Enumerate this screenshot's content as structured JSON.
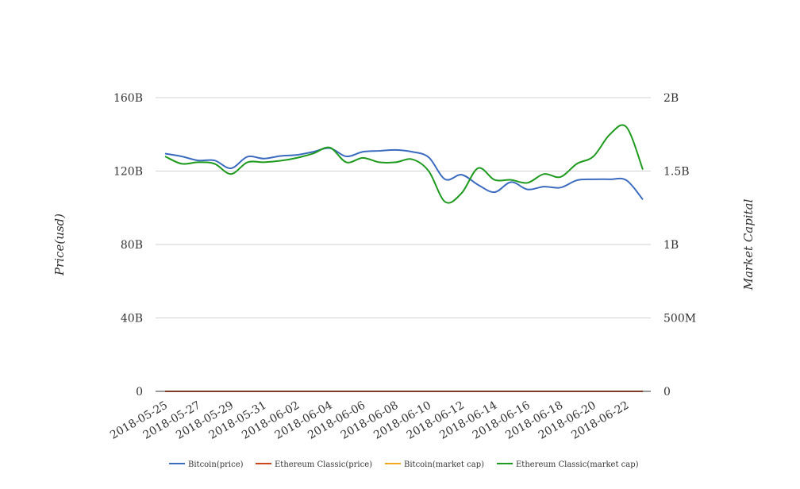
{
  "chart_data": {
    "type": "line",
    "title": "",
    "ylabel_left": "Price(usd)",
    "ylabel_right": "Market Capital",
    "x": [
      "2018-05-25",
      "2018-05-26",
      "2018-05-27",
      "2018-05-28",
      "2018-05-29",
      "2018-05-30",
      "2018-05-31",
      "2018-06-01",
      "2018-06-02",
      "2018-06-03",
      "2018-06-04",
      "2018-06-05",
      "2018-06-06",
      "2018-06-07",
      "2018-06-08",
      "2018-06-09",
      "2018-06-10",
      "2018-06-11",
      "2018-06-12",
      "2018-06-13",
      "2018-06-14",
      "2018-06-15",
      "2018-06-16",
      "2018-06-17",
      "2018-06-18",
      "2018-06-19",
      "2018-06-20",
      "2018-06-21",
      "2018-06-22",
      "2018-06-23"
    ],
    "x_tick_labels": [
      "2018-05-25",
      "2018-05-27",
      "2018-05-29",
      "2018-05-31",
      "2018-06-02",
      "2018-06-04",
      "2018-06-06",
      "2018-06-08",
      "2018-06-10",
      "2018-06-12",
      "2018-06-14",
      "2018-06-16",
      "2018-06-18",
      "2018-06-20",
      "2018-06-22"
    ],
    "y_left": {
      "ticks": [
        0,
        40,
        80,
        120,
        160
      ],
      "tick_labels": [
        "0",
        "40B",
        "80B",
        "120B",
        "160B"
      ],
      "ylim": [
        0,
        160
      ]
    },
    "y_right": {
      "ticks": [
        0,
        0.5,
        1,
        1.5,
        2
      ],
      "tick_labels": [
        "0",
        "500M",
        "1B",
        "1.5B",
        "2B"
      ],
      "ylim": [
        0,
        2
      ]
    },
    "grid": true,
    "legend_position": "bottom",
    "series": [
      {
        "name": "Bitcoin(price)",
        "axis": "left",
        "color": "#3b6bbf",
        "values": [
          129.5,
          128.0,
          125.8,
          125.8,
          121.5,
          127.8,
          126.8,
          128.2,
          128.8,
          130.5,
          132.5,
          128.0,
          130.5,
          131.0,
          131.5,
          130.5,
          127.5,
          115.5,
          118.0,
          112.5,
          108.5,
          114.0,
          110.0,
          111.5,
          111.0,
          115.0,
          115.5,
          115.5,
          115.0,
          104.5
        ]
      },
      {
        "name": "Ethereum Classic(price)",
        "axis": "left",
        "color": "#c9461e",
        "values": [
          0,
          0,
          0,
          0,
          0,
          0,
          0,
          0,
          0,
          0,
          0,
          0,
          0,
          0,
          0,
          0,
          0,
          0,
          0,
          0,
          0,
          0,
          0,
          0,
          0,
          0,
          0,
          0,
          0,
          0
        ]
      },
      {
        "name": "Bitcoin(market cap)",
        "axis": "left",
        "color": "#f2a81d",
        "values": [
          0,
          0,
          0,
          0,
          0,
          0,
          0,
          0,
          0,
          0,
          0,
          0,
          0,
          0,
          0,
          0,
          0,
          0,
          0,
          0,
          0,
          0,
          0,
          0,
          0,
          0,
          0,
          0,
          0,
          0
        ]
      },
      {
        "name": "Ethereum Classic(market cap)",
        "axis": "right",
        "color": "#1e9a1e",
        "values": [
          1.6,
          1.55,
          1.56,
          1.55,
          1.48,
          1.56,
          1.56,
          1.57,
          1.59,
          1.62,
          1.66,
          1.56,
          1.59,
          1.56,
          1.56,
          1.58,
          1.5,
          1.29,
          1.35,
          1.52,
          1.44,
          1.44,
          1.42,
          1.48,
          1.46,
          1.55,
          1.6,
          1.75,
          1.8,
          1.51
        ]
      }
    ]
  }
}
